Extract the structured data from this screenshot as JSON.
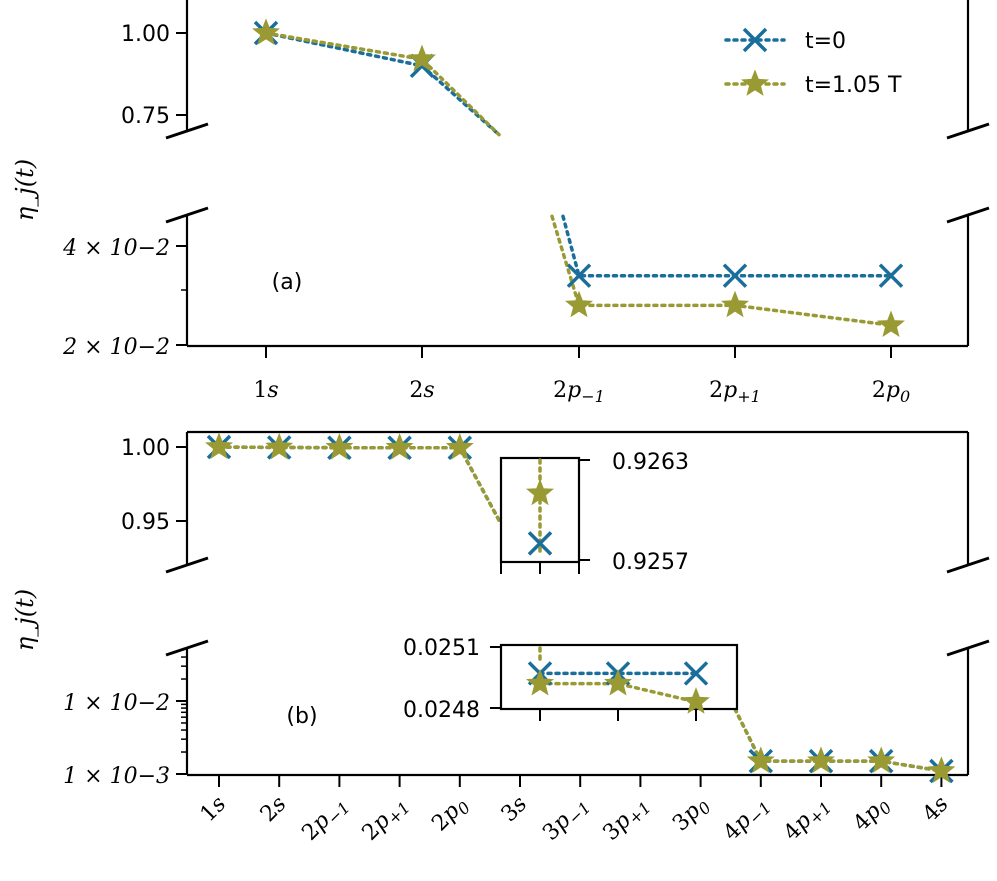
{
  "colors": {
    "t0": "#1a6e9a",
    "t105": "#9a9a34"
  },
  "legend": {
    "t0": "t=0",
    "t105": "t=1.05 T"
  },
  "chart_data": [
    {
      "type": "line",
      "panel_label": "(a)",
      "ylabel": "η_j(t)",
      "categories": [
        "1s",
        "2s",
        "2p−1",
        "2p+1",
        "2p0"
      ],
      "axis_break": true,
      "upper_ylim": [
        0.7,
        1.05
      ],
      "upper_yticks": [
        "1.00",
        "0.75"
      ],
      "lower_ylim": [
        0.02,
        0.047
      ],
      "lower_yticks": [
        "4 × 10−2",
        "2 × 10−2"
      ],
      "series": [
        {
          "name": "t=0",
          "marker": "x",
          "values": [
            1.0,
            0.9,
            0.034,
            0.034,
            0.034
          ]
        },
        {
          "name": "t=1.05 T",
          "marker": "star",
          "values": [
            1.0,
            0.92,
            0.028,
            0.028,
            0.024
          ]
        }
      ],
      "legend_position": "top-right"
    },
    {
      "type": "line",
      "panel_label": "(b)",
      "ylabel": "η_j(t)",
      "categories": [
        "1s",
        "2s",
        "2p−1",
        "2p+1",
        "2p0",
        "3s",
        "3p−1",
        "3p+1",
        "3p0",
        "4p−1",
        "4p+1",
        "4p0",
        "4s"
      ],
      "axis_break": true,
      "upper_ylim": [
        0.93,
        1.01
      ],
      "upper_yticks": [
        "1.00",
        "0.95"
      ],
      "lower_yscale": "log",
      "lower_ylim": [
        0.001,
        0.05
      ],
      "lower_yticks": [
        "1 × 10−2",
        "1 × 10−3"
      ],
      "series": [
        {
          "name": "t=0",
          "marker": "x",
          "values": [
            1.0,
            0.9997,
            0.9995,
            0.9995,
            0.9995,
            0.9258,
            0.02497,
            0.02497,
            0.02497,
            0.0015,
            0.0015,
            0.0015,
            0.0011
          ]
        },
        {
          "name": "t=1.05 T",
          "marker": "star",
          "values": [
            1.0,
            0.9997,
            0.9995,
            0.9995,
            0.9995,
            0.9261,
            0.02492,
            0.02492,
            0.02483,
            0.0015,
            0.0015,
            0.0015,
            0.0011
          ]
        }
      ],
      "insets": [
        {
          "categories": [
            "3s"
          ],
          "ylim": [
            0.9257,
            0.9263
          ],
          "yticks": [
            "0.9263",
            "0.9257"
          ]
        },
        {
          "categories": [
            "3p−1",
            "3p+1",
            "3p0"
          ],
          "ylim": [
            0.0248,
            0.0251
          ],
          "yticks": [
            "0.0251",
            "0.0248"
          ]
        }
      ]
    }
  ]
}
